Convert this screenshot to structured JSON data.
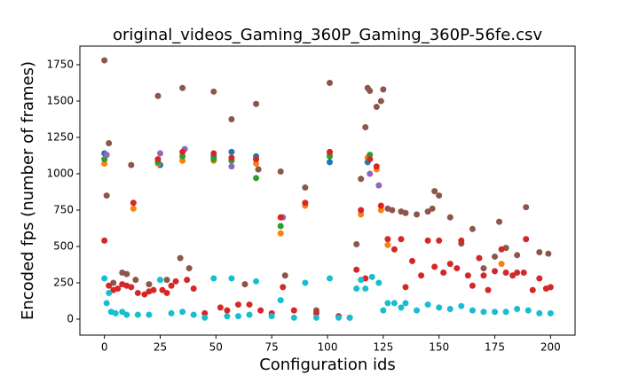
{
  "chart_data": {
    "type": "scatter",
    "title": "original_videos_Gaming_360P_Gaming_360P-56fe.csv",
    "x_label": "Configuration ids",
    "y_label": "Encoded fps (number of frames)",
    "xlim": [
      -11,
      211
    ],
    "ylim": [
      -110,
      1878
    ],
    "xticks": [
      0,
      25,
      50,
      75,
      100,
      125,
      150,
      175,
      200
    ],
    "yticks": [
      0,
      250,
      500,
      750,
      1000,
      1250,
      1500,
      1750
    ],
    "series": [
      {
        "color": "#1f77b4",
        "x": [
          0,
          25,
          49,
          57,
          68,
          101,
          118
        ],
        "values": [
          1140,
          1060,
          1120,
          1150,
          1120,
          1080,
          1080
        ]
      },
      {
        "color": "#ff7f0e",
        "x": [
          0,
          13,
          24,
          35,
          49,
          57,
          68,
          79,
          90,
          101,
          115,
          118,
          122,
          124,
          127,
          178
        ],
        "values": [
          1070,
          760,
          1070,
          1090,
          1090,
          1110,
          1070,
          590,
          780,
          1140,
          720,
          1110,
          1030,
          750,
          510,
          380
        ]
      },
      {
        "color": "#2ca02c",
        "x": [
          0,
          24,
          35,
          49,
          57,
          68,
          79,
          101,
          119
        ],
        "values": [
          1100,
          1080,
          1120,
          1100,
          1090,
          970,
          640,
          1120,
          1130
        ]
      },
      {
        "color": "#9467bd",
        "x": [
          1,
          25,
          36,
          57,
          69,
          80,
          119,
          123
        ],
        "values": [
          1130,
          1140,
          1170,
          1050,
          1030,
          700,
          1000,
          920
        ]
      },
      {
        "color": "#8c564b",
        "x": [
          0,
          1,
          2,
          4,
          8,
          10,
          12,
          14,
          20,
          24,
          28,
          34,
          35,
          38,
          49,
          57,
          63,
          68,
          69,
          79,
          81,
          90,
          95,
          101,
          113,
          115,
          117,
          118,
          119,
          122,
          124,
          125,
          127,
          129,
          133,
          135,
          140,
          145,
          147,
          148,
          150,
          155,
          160,
          165,
          170,
          175,
          177,
          180,
          185,
          189,
          195,
          199
        ],
        "values": [
          1780,
          850,
          1210,
          250,
          320,
          310,
          1060,
          270,
          240,
          1535,
          270,
          420,
          1590,
          350,
          1565,
          1375,
          240,
          1480,
          1030,
          1015,
          300,
          905,
          60,
          1625,
          515,
          965,
          1320,
          1590,
          1570,
          1460,
          1500,
          1580,
          760,
          750,
          740,
          730,
          720,
          740,
          760,
          880,
          850,
          700,
          520,
          620,
          350,
          430,
          670,
          490,
          440,
          770,
          460,
          450
        ]
      },
      {
        "color": "#d62728",
        "x": [
          0,
          2,
          4,
          6,
          8,
          10,
          12,
          13,
          15,
          18,
          20,
          22,
          24,
          26,
          28,
          30,
          32,
          35,
          37,
          40,
          45,
          49,
          52,
          55,
          57,
          60,
          65,
          68,
          70,
          75,
          79,
          80,
          85,
          90,
          95,
          101,
          105,
          110,
          113,
          115,
          117,
          119,
          122,
          124,
          127,
          130,
          133,
          135,
          138,
          142,
          145,
          148,
          150,
          152,
          155,
          158,
          160,
          163,
          165,
          168,
          170,
          172,
          175,
          178,
          180,
          183,
          185,
          188,
          189,
          192,
          195,
          198,
          200
        ],
        "values": [
          540,
          230,
          200,
          210,
          240,
          230,
          220,
          800,
          180,
          170,
          190,
          200,
          1100,
          200,
          180,
          230,
          260,
          1150,
          270,
          210,
          40,
          1140,
          80,
          60,
          1110,
          100,
          100,
          1100,
          60,
          40,
          700,
          220,
          60,
          800,
          40,
          1150,
          20,
          10,
          340,
          750,
          280,
          1100,
          1050,
          780,
          550,
          480,
          550,
          220,
          400,
          300,
          540,
          360,
          540,
          320,
          380,
          350,
          540,
          300,
          230,
          420,
          300,
          200,
          330,
          480,
          320,
          300,
          320,
          320,
          550,
          200,
          280,
          210,
          220
        ]
      },
      {
        "color": "#17becf",
        "x": [
          0,
          1,
          2,
          3,
          5,
          8,
          10,
          15,
          20,
          25,
          30,
          35,
          40,
          45,
          49,
          55,
          57,
          60,
          65,
          68,
          75,
          79,
          85,
          90,
          95,
          101,
          105,
          110,
          113,
          115,
          117,
          120,
          123,
          125,
          127,
          130,
          133,
          135,
          140,
          145,
          150,
          155,
          160,
          165,
          170,
          175,
          180,
          185,
          190,
          195,
          200
        ],
        "values": [
          280,
          110,
          180,
          50,
          40,
          50,
          30,
          30,
          30,
          270,
          40,
          50,
          30,
          10,
          280,
          20,
          280,
          20,
          30,
          260,
          20,
          130,
          10,
          250,
          10,
          280,
          10,
          10,
          210,
          270,
          210,
          290,
          250,
          60,
          110,
          110,
          80,
          110,
          60,
          100,
          80,
          70,
          90,
          60,
          50,
          50,
          50,
          70,
          60,
          40,
          40
        ]
      }
    ]
  }
}
